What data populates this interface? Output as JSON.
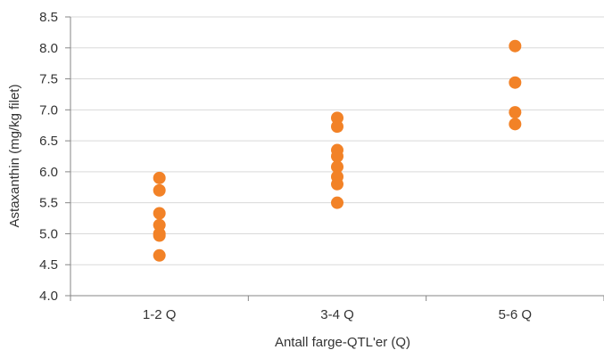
{
  "chart_data": {
    "type": "scatter",
    "title": "",
    "xlabel": "Antall farge-QTL'er (Q)",
    "ylabel": "Astaxanthin (mg/kg filet)",
    "categories": [
      "1-2 Q",
      "3-4 Q",
      "5-6 Q"
    ],
    "yticks": [
      "4.0",
      "4.5",
      "5.0",
      "5.5",
      "6.0",
      "6.5",
      "7.0",
      "7.5",
      "8.0",
      "8.5"
    ],
    "ylim": [
      4.0,
      8.5
    ],
    "grid": "horizontal",
    "legend": "none",
    "marker_color": "#F28227",
    "series": [
      {
        "points": [
          {
            "x": "1-2 Q",
            "y": 5.9
          },
          {
            "x": "1-2 Q",
            "y": 5.7
          },
          {
            "x": "1-2 Q",
            "y": 5.33
          },
          {
            "x": "1-2 Q",
            "y": 5.14
          },
          {
            "x": "1-2 Q",
            "y": 5.0
          },
          {
            "x": "1-2 Q",
            "y": 4.97
          },
          {
            "x": "1-2 Q",
            "y": 4.65
          },
          {
            "x": "3-4 Q",
            "y": 6.87
          },
          {
            "x": "3-4 Q",
            "y": 6.73
          },
          {
            "x": "3-4 Q",
            "y": 6.35
          },
          {
            "x": "3-4 Q",
            "y": 6.25
          },
          {
            "x": "3-4 Q",
            "y": 6.08
          },
          {
            "x": "3-4 Q",
            "y": 5.92
          },
          {
            "x": "3-4 Q",
            "y": 5.8
          },
          {
            "x": "3-4 Q",
            "y": 5.5
          },
          {
            "x": "5-6 Q",
            "y": 8.03
          },
          {
            "x": "5-6 Q",
            "y": 7.44
          },
          {
            "x": "5-6 Q",
            "y": 6.96
          },
          {
            "x": "5-6 Q",
            "y": 6.77
          }
        ]
      }
    ]
  }
}
